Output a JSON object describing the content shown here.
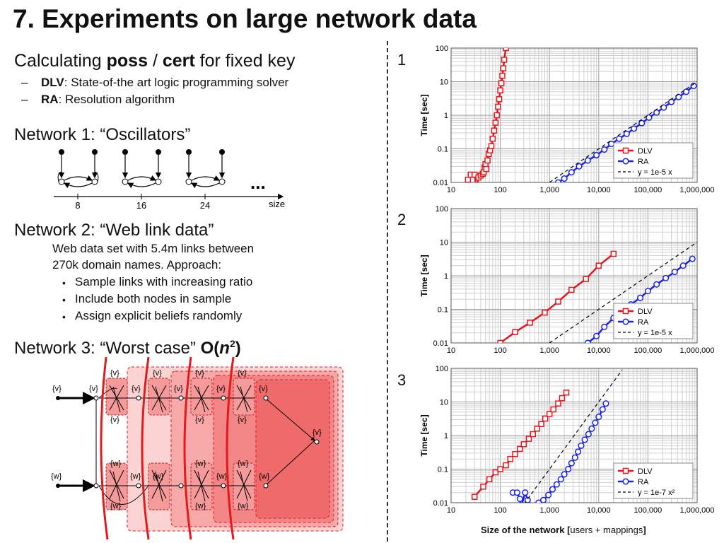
{
  "slide": {
    "title": "7. Experiments on large network data",
    "intro": {
      "prefix": "Calculating ",
      "poss": "poss",
      "sep": " / ",
      "cert": "cert",
      "suffix": " for fixed key"
    },
    "methods": [
      {
        "name": "DLV",
        "desc": ": State-of-the art logic programming solver"
      },
      {
        "name": "RA",
        "desc": ": Resolution algorithm"
      }
    ],
    "network1": {
      "heading": "Network 1: “Oscillators”",
      "ticks": [
        "8",
        "16",
        "24"
      ],
      "axis_label": "size",
      "ellipsis": "..."
    },
    "network2": {
      "heading": "Network 2: “Web link data”",
      "desc_lines": [
        "Web data set with 5.4m links between",
        "270k domain names. Approach:"
      ],
      "bullets": [
        "Sample links with increasing ratio",
        "Include both nodes in sample",
        "Assign explicit beliefs randomly"
      ]
    },
    "network3": {
      "heading_prefix": "Network 3: “Worst case” ",
      "heading_bold_O": "O(",
      "heading_bold_n": "n",
      "heading_bold_sup": "2",
      "heading_bold_close": ")",
      "labels": {
        "v": "{v}",
        "w": "{w}"
      }
    },
    "plot_numbers": [
      "1",
      "2",
      "3"
    ],
    "bottom_xlabel_bold": "Size of the network [",
    "bottom_xlabel_rest": "users + mappings",
    "bottom_xlabel_close": "]"
  },
  "chart_data": [
    {
      "type": "line",
      "ylabel": "Time [sec]",
      "xscale": "log",
      "yscale": "log",
      "xlim": [
        10,
        1000000
      ],
      "ylim": [
        0.01,
        100
      ],
      "xticks": [
        "10",
        "100",
        "1,000",
        "10,000",
        "100,000",
        "1,000,000"
      ],
      "yticks": [
        "0.01",
        "0.1",
        "1",
        "10",
        "100"
      ],
      "grid": true,
      "legend_position": "bottom-right",
      "series": [
        {
          "name": "DLV",
          "color": "#e8141b",
          "marker": "square",
          "x": [
            18,
            22,
            25,
            30,
            33,
            36,
            40,
            44,
            46,
            48,
            50,
            52,
            55,
            58,
            62,
            66,
            70,
            75,
            80,
            85,
            90,
            95,
            100,
            105,
            110,
            115,
            120,
            130
          ],
          "y": [
            0.008,
            0.012,
            0.017,
            0.017,
            0.006,
            0.014,
            0.016,
            0.018,
            0.02,
            0.028,
            0.035,
            0.025,
            0.045,
            0.07,
            0.09,
            0.12,
            0.2,
            0.35,
            0.6,
            1.0,
            1.8,
            3.0,
            5.5,
            9.0,
            15,
            25,
            45,
            100
          ]
        },
        {
          "name": "RA",
          "color": "#1a22e6",
          "marker": "circle",
          "x": [
            1500,
            2000,
            2800,
            4000,
            6000,
            9000,
            13000,
            18000,
            26000,
            37000,
            52000,
            75000,
            105000,
            150000,
            210000,
            300000,
            420000,
            600000,
            850000
          ],
          "y": [
            0.01,
            0.013,
            0.02,
            0.03,
            0.045,
            0.065,
            0.095,
            0.14,
            0.2,
            0.28,
            0.4,
            0.58,
            0.85,
            1.2,
            1.7,
            2.5,
            3.5,
            5.0,
            7.5
          ]
        },
        {
          "name": "y = 1e-5 x",
          "color": "#000000",
          "dashed": true,
          "line": true,
          "x": [
            1000,
            1000000
          ],
          "y": [
            0.01,
            10
          ]
        }
      ]
    },
    {
      "type": "line",
      "ylabel": "Time [sec]",
      "xscale": "log",
      "yscale": "log",
      "xlim": [
        10,
        1000000
      ],
      "ylim": [
        0.01,
        100
      ],
      "xticks": [
        "10",
        "100",
        "1,000",
        "10,000",
        "100,000",
        "1,000,000"
      ],
      "yticks": [
        "0.01",
        "0.1",
        "1",
        "10",
        "100"
      ],
      "grid": true,
      "legend_position": "bottom-right",
      "series": [
        {
          "name": "DLV",
          "color": "#e8141b",
          "marker": "square",
          "x": [
            100,
            200,
            400,
            800,
            1500,
            2800,
            5500,
            10000,
            20000
          ],
          "y": [
            0.01,
            0.021,
            0.04,
            0.08,
            0.17,
            0.38,
            0.8,
            2.0,
            4.5
          ]
        },
        {
          "name": "RA",
          "color": "#1a22e6",
          "marker": "circle",
          "x": [
            6000,
            9000,
            13000,
            20000,
            30000,
            45000,
            70000,
            100000,
            150000,
            230000,
            350000,
            520000,
            800000
          ],
          "y": [
            0.01,
            0.016,
            0.03,
            0.055,
            0.085,
            0.14,
            0.22,
            0.35,
            0.55,
            0.85,
            1.3,
            2.0,
            3.2
          ]
        },
        {
          "name": "y = 1e-5 x",
          "color": "#000000",
          "dashed": true,
          "line": true,
          "x": [
            1000,
            1000000
          ],
          "y": [
            0.01,
            10
          ]
        }
      ]
    },
    {
      "type": "line",
      "ylabel": "Time [sec]",
      "xscale": "log",
      "yscale": "log",
      "xlim": [
        10,
        1000000
      ],
      "ylim": [
        0.01,
        100
      ],
      "xticks": [
        "10",
        "100",
        "1,000",
        "10,000",
        "100,000",
        "1,000,000"
      ],
      "yticks": [
        "0.01",
        "0.1",
        "1",
        "10",
        "100"
      ],
      "grid": true,
      "legend_position": "bottom-right",
      "series": [
        {
          "name": "DLV",
          "color": "#e8141b",
          "marker": "square",
          "x": [
            30,
            45,
            60,
            80,
            100,
            130,
            160,
            200,
            250,
            300,
            380,
            460,
            560,
            680,
            820,
            1000,
            1200,
            1500,
            1800,
            2200
          ],
          "y": [
            0.015,
            0.03,
            0.05,
            0.08,
            0.1,
            0.13,
            0.2,
            0.28,
            0.4,
            0.55,
            0.8,
            1.1,
            1.6,
            2.2,
            3.2,
            4.4,
            6.0,
            9.0,
            13,
            19
          ]
        },
        {
          "name": "RA",
          "color": "#1a22e6",
          "marker": "circle",
          "x": [
            180,
            220,
            250,
            260,
            320,
            360,
            450,
            600,
            750,
            950,
            1150,
            1400,
            1700,
            2000,
            2400,
            2800,
            3300,
            3800,
            4400,
            5200,
            6200,
            7200,
            8500,
            10000,
            12000,
            14000
          ],
          "y": [
            0.02,
            0.02,
            0.013,
            0.007,
            0.02,
            0.012,
            0.008,
            0.01,
            0.012,
            0.017,
            0.025,
            0.035,
            0.05,
            0.07,
            0.1,
            0.15,
            0.22,
            0.33,
            0.5,
            0.75,
            1.1,
            1.6,
            2.4,
            3.6,
            6.0,
            9.0
          ]
        },
        {
          "name": "y = 1e-7 x²",
          "color": "#000000",
          "dashed": true,
          "line": true,
          "x": [
            300,
            30000
          ],
          "y": [
            0.009,
            90
          ]
        }
      ]
    }
  ]
}
